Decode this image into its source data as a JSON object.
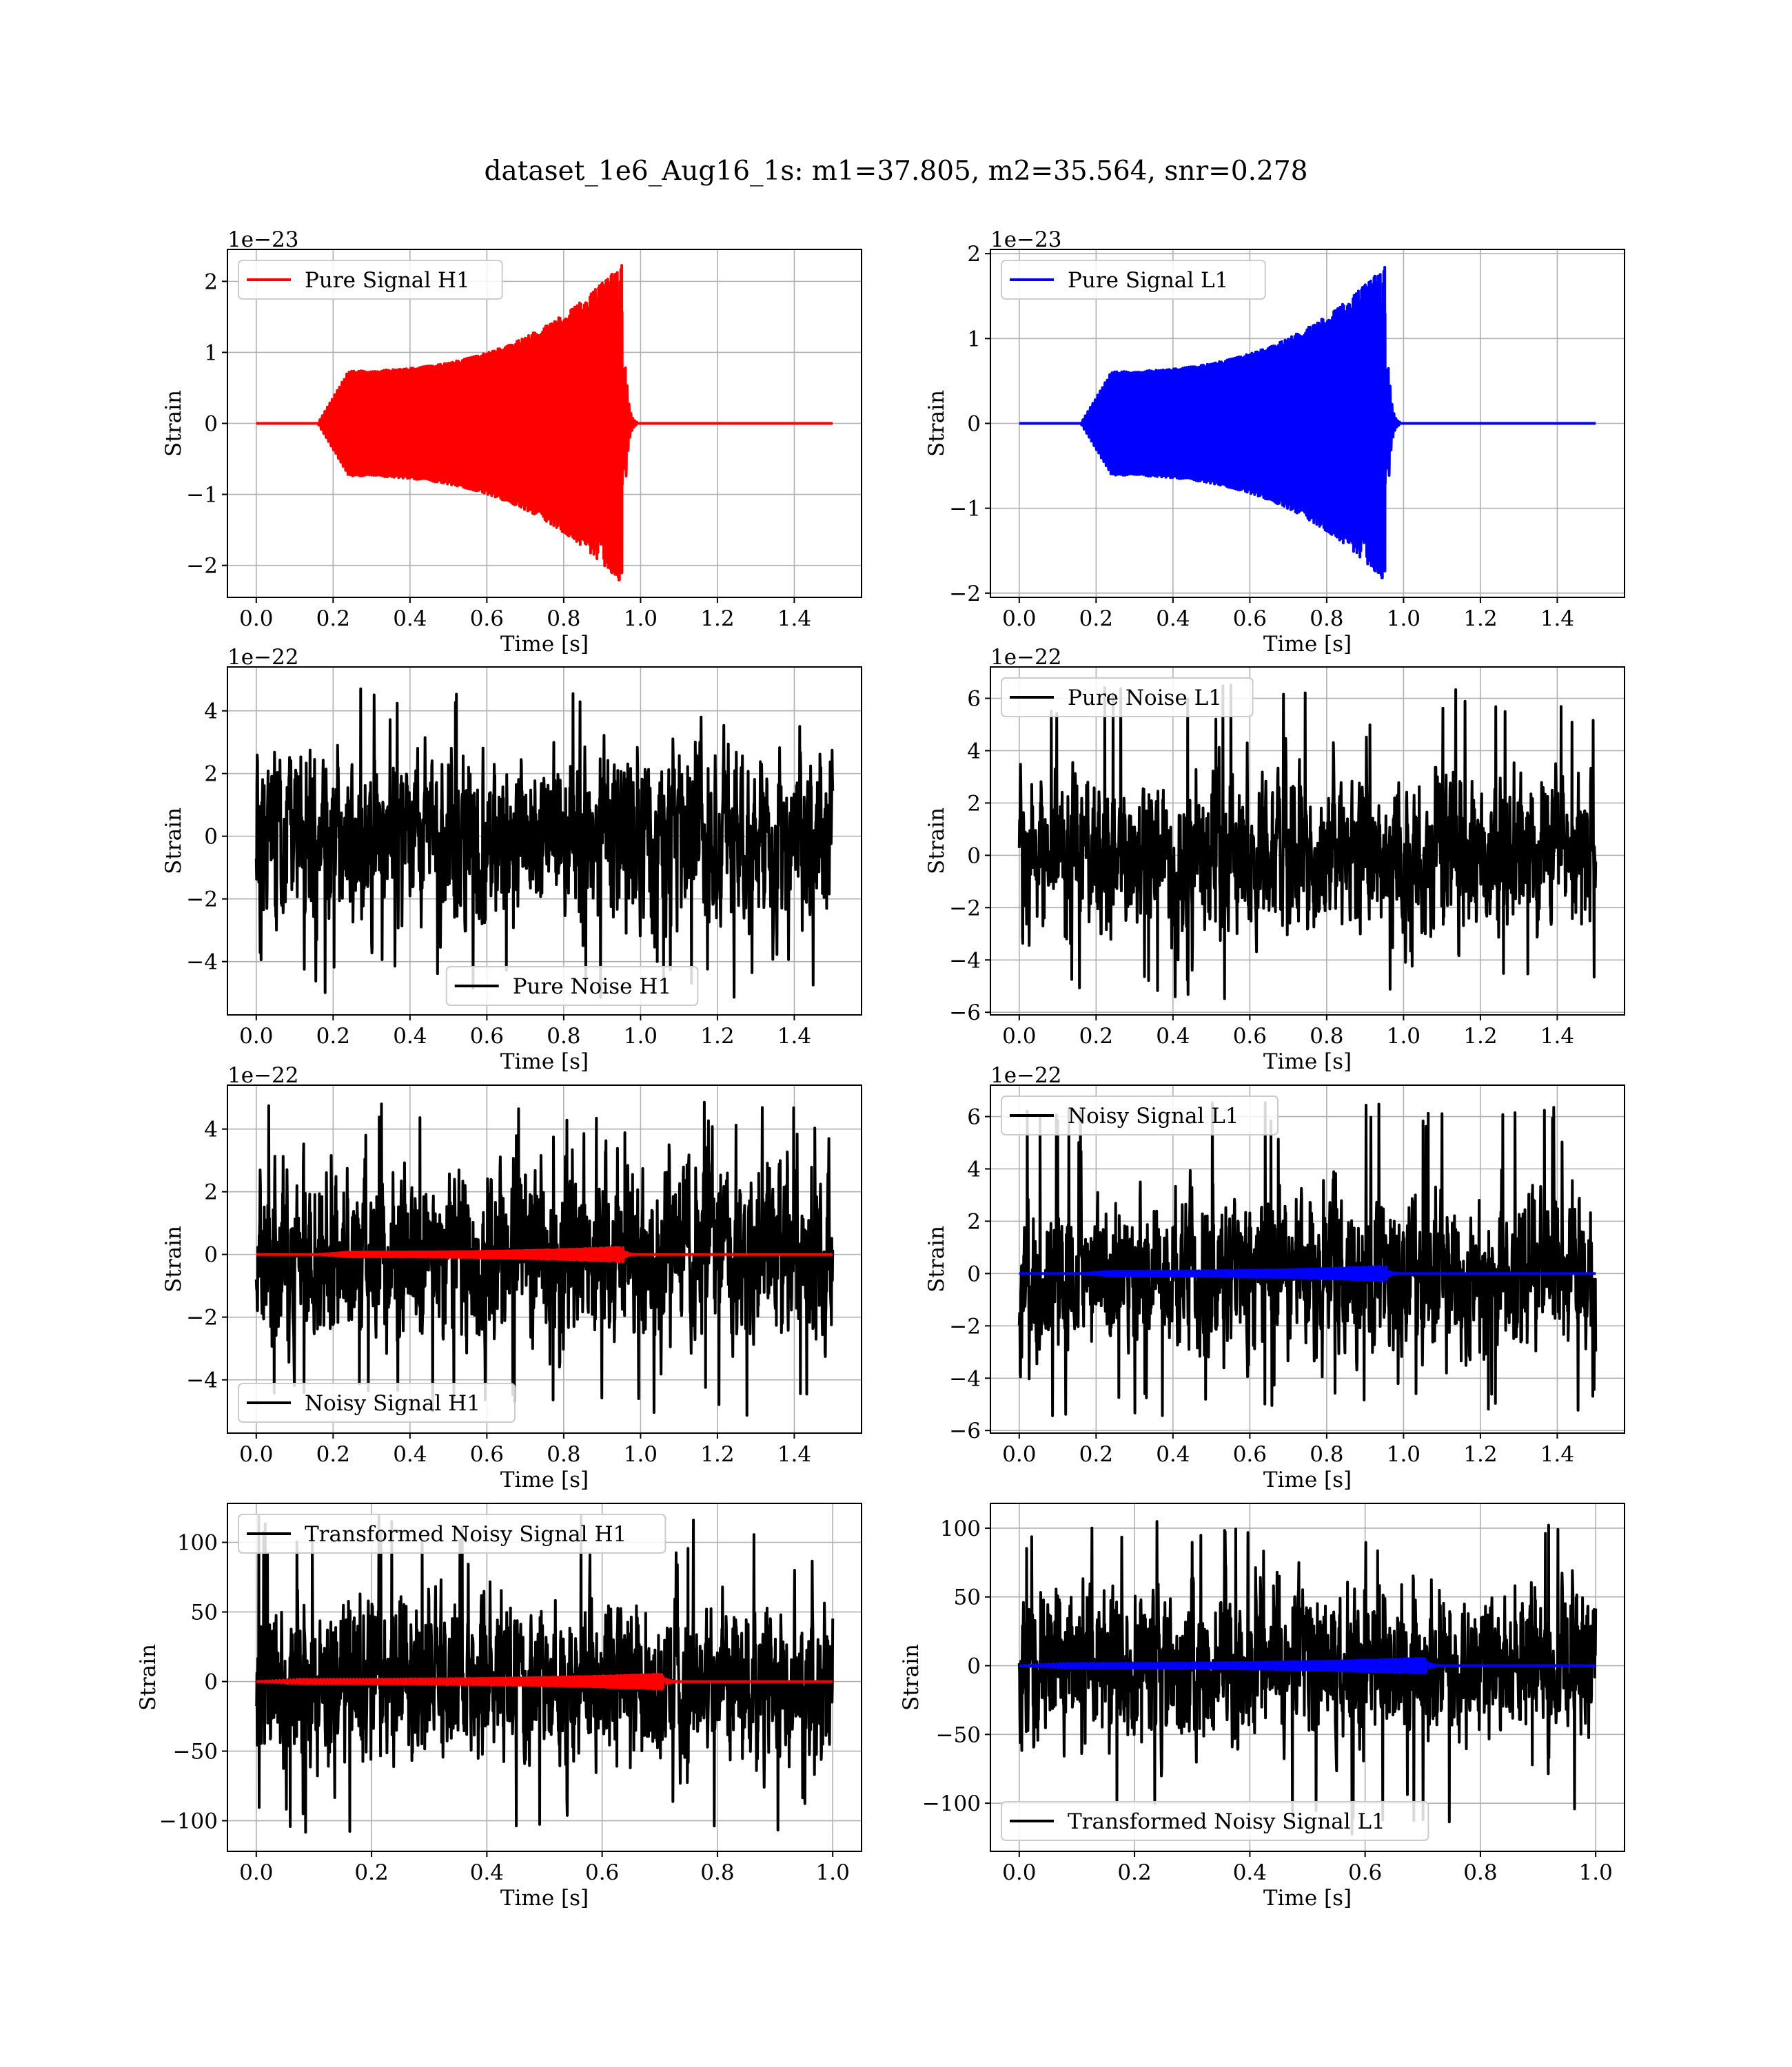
{
  "figure": {
    "title": "dataset_1e6_Aug16_1s: m1=37.805, m2=35.564, snr=0.278"
  },
  "chart_data": [
    {
      "type": "line",
      "legend": "Pure Signal H1",
      "legend_position": "upper-left",
      "color": "#ff0000",
      "xlabel": "Time [s]",
      "ylabel": "Strain",
      "offset_text": "1e−23",
      "xlim": [
        -0.075,
        1.575
      ],
      "ylim": [
        -2.45,
        2.45
      ],
      "xticks": [
        0.0,
        0.2,
        0.4,
        0.6,
        0.8,
        1.0,
        1.2,
        1.4
      ],
      "xtick_labels": [
        "0.0",
        "0.2",
        "0.4",
        "0.6",
        "0.8",
        "1.0",
        "1.2",
        "1.4"
      ],
      "yticks": [
        -2,
        -1,
        0,
        1,
        2
      ],
      "ytick_labels": [
        "−2",
        "−1",
        "0",
        "1",
        "2"
      ],
      "grid": true,
      "x_range": [
        0.0,
        1.5
      ],
      "y_peak": 2.3,
      "chirp_start": 0.16,
      "merger_time": 0.96
    },
    {
      "type": "line",
      "legend": "Pure Signal L1",
      "legend_position": "upper-left",
      "color": "#0000ff",
      "xlabel": "Time [s]",
      "ylabel": "Strain",
      "offset_text": "1e−23",
      "xlim": [
        -0.075,
        1.575
      ],
      "ylim": [
        -2.05,
        2.05
      ],
      "xticks": [
        0.0,
        0.2,
        0.4,
        0.6,
        0.8,
        1.0,
        1.2,
        1.4
      ],
      "xtick_labels": [
        "0.0",
        "0.2",
        "0.4",
        "0.6",
        "0.8",
        "1.0",
        "1.2",
        "1.4"
      ],
      "yticks": [
        -2,
        -1,
        0,
        1,
        2
      ],
      "ytick_labels": [
        "−2",
        "−1",
        "0",
        "1",
        "2"
      ],
      "grid": true,
      "x_range": [
        0.0,
        1.5
      ],
      "y_peak": 1.9,
      "chirp_start": 0.16,
      "merger_time": 0.96
    },
    {
      "type": "line",
      "legend": "Pure Noise H1",
      "legend_position": "lower-center",
      "color": "#000000",
      "xlabel": "Time [s]",
      "ylabel": "Strain",
      "offset_text": "1e−22",
      "xlim": [
        -0.075,
        1.575
      ],
      "ylim": [
        -5.7,
        5.4
      ],
      "xticks": [
        0.0,
        0.2,
        0.4,
        0.6,
        0.8,
        1.0,
        1.2,
        1.4
      ],
      "xtick_labels": [
        "0.0",
        "0.2",
        "0.4",
        "0.6",
        "0.8",
        "1.0",
        "1.2",
        "1.4"
      ],
      "yticks": [
        -4,
        -2,
        0,
        2,
        4
      ],
      "ytick_labels": [
        "−4",
        "−2",
        "0",
        "2",
        "4"
      ],
      "grid": true,
      "x_range": [
        0.0,
        1.5
      ],
      "noise_amplitude": 1.6,
      "noise_max": 4.9,
      "noise_min": -5.2
    },
    {
      "type": "line",
      "legend": "Pure Noise L1",
      "legend_position": "upper-left",
      "color": "#000000",
      "xlabel": "Time [s]",
      "ylabel": "Strain",
      "offset_text": "1e−22",
      "xlim": [
        -0.075,
        1.575
      ],
      "ylim": [
        -6.1,
        7.2
      ],
      "xticks": [
        0.0,
        0.2,
        0.4,
        0.6,
        0.8,
        1.0,
        1.2,
        1.4
      ],
      "xtick_labels": [
        "0.0",
        "0.2",
        "0.4",
        "0.6",
        "0.8",
        "1.0",
        "1.2",
        "1.4"
      ],
      "yticks": [
        -6,
        -4,
        -2,
        0,
        2,
        4,
        6
      ],
      "ytick_labels": [
        "−6",
        "−4",
        "−2",
        "0",
        "2",
        "4",
        "6"
      ],
      "grid": true,
      "x_range": [
        0.0,
        1.5
      ],
      "noise_amplitude": 1.7,
      "noise_max": 6.6,
      "noise_min": -5.5
    },
    {
      "type": "line",
      "legend": "Noisy Signal H1",
      "legend_position": "lower-left",
      "color": "#000000",
      "overlay_color": "#ff0000",
      "xlabel": "Time [s]",
      "ylabel": "Strain",
      "offset_text": "1e−22",
      "xlim": [
        -0.075,
        1.575
      ],
      "ylim": [
        -5.7,
        5.4
      ],
      "xticks": [
        0.0,
        0.2,
        0.4,
        0.6,
        0.8,
        1.0,
        1.2,
        1.4
      ],
      "xtick_labels": [
        "0.0",
        "0.2",
        "0.4",
        "0.6",
        "0.8",
        "1.0",
        "1.2",
        "1.4"
      ],
      "yticks": [
        -4,
        -2,
        0,
        2,
        4
      ],
      "ytick_labels": [
        "−4",
        "−2",
        "0",
        "2",
        "4"
      ],
      "grid": true,
      "x_range": [
        0.0,
        1.5
      ],
      "noise_amplitude": 1.6,
      "noise_max": 4.9,
      "noise_min": -5.2,
      "chirp_start": 0.16,
      "merger_time": 0.96
    },
    {
      "type": "line",
      "legend": "Noisy Signal L1",
      "legend_position": "upper-left",
      "color": "#000000",
      "overlay_color": "#0000ff",
      "xlabel": "Time [s]",
      "ylabel": "Strain",
      "offset_text": "1e−22",
      "xlim": [
        -0.075,
        1.575
      ],
      "ylim": [
        -6.1,
        7.2
      ],
      "xticks": [
        0.0,
        0.2,
        0.4,
        0.6,
        0.8,
        1.0,
        1.2,
        1.4
      ],
      "xtick_labels": [
        "0.0",
        "0.2",
        "0.4",
        "0.6",
        "0.8",
        "1.0",
        "1.2",
        "1.4"
      ],
      "yticks": [
        -6,
        -4,
        -2,
        0,
        2,
        4,
        6
      ],
      "ytick_labels": [
        "−6",
        "−4",
        "−2",
        "0",
        "2",
        "4",
        "6"
      ],
      "grid": true,
      "x_range": [
        0.0,
        1.5
      ],
      "noise_amplitude": 1.7,
      "noise_max": 6.6,
      "noise_min": -5.5,
      "chirp_start": 0.16,
      "merger_time": 0.96
    },
    {
      "type": "line",
      "legend": "Transformed Noisy Signal H1",
      "legend_position": "upper-left",
      "color": "#000000",
      "overlay_color": "#ff0000",
      "xlabel": "Time [s]",
      "ylabel": "Strain",
      "offset_text": "",
      "xlim": [
        -0.05,
        1.05
      ],
      "ylim": [
        -122,
        128
      ],
      "xticks": [
        0.0,
        0.2,
        0.4,
        0.6,
        0.8,
        1.0
      ],
      "xtick_labels": [
        "0.0",
        "0.2",
        "0.4",
        "0.6",
        "0.8",
        "1.0"
      ],
      "yticks": [
        -100,
        -50,
        0,
        50,
        100
      ],
      "ytick_labels": [
        "−100",
        "−50",
        "0",
        "50",
        "100"
      ],
      "grid": true,
      "x_range": [
        0.0,
        1.0
      ],
      "noise_amplitude": 32,
      "noise_max": 122,
      "noise_min": -110,
      "chirp_start": 0.0,
      "merger_time": 0.71
    },
    {
      "type": "line",
      "legend": "Transformed Noisy Signal L1",
      "legend_position": "lower-left",
      "color": "#000000",
      "overlay_color": "#0000ff",
      "xlabel": "Time [s]",
      "ylabel": "Strain",
      "offset_text": "",
      "xlim": [
        -0.05,
        1.05
      ],
      "ylim": [
        -135,
        118
      ],
      "xticks": [
        0.0,
        0.2,
        0.4,
        0.6,
        0.8,
        1.0
      ],
      "xtick_labels": [
        "0.0",
        "0.2",
        "0.4",
        "0.6",
        "0.8",
        "1.0"
      ],
      "yticks": [
        -100,
        -50,
        0,
        50,
        100
      ],
      "ytick_labels": [
        "−100",
        "−50",
        "0",
        "50",
        "100"
      ],
      "grid": true,
      "x_range": [
        0.0,
        1.0
      ],
      "noise_amplitude": 32,
      "noise_max": 108,
      "noise_min": -123,
      "chirp_start": 0.0,
      "merger_time": 0.71
    }
  ]
}
